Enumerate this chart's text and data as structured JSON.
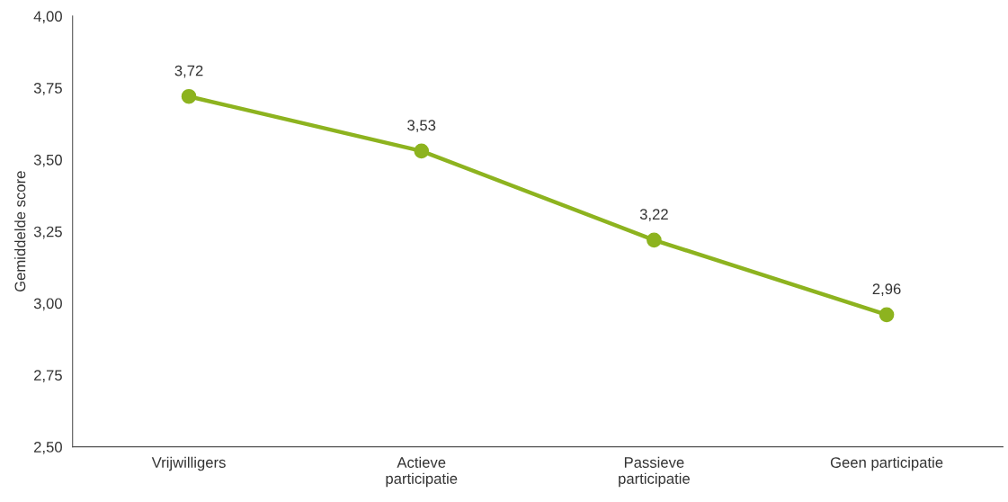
{
  "chart_data": {
    "type": "line",
    "ylabel": "Gemiddelde score",
    "categories": [
      "Vrijwilligers",
      "Actieve\nparticipatie",
      "Passieve\nparticipatie",
      "Geen participatie"
    ],
    "series": [
      {
        "color": "#8db31f",
        "values": [
          3.72,
          3.53,
          3.22,
          2.96
        ],
        "value_labels": [
          "3,72",
          "3,53",
          "3,22",
          "2,96"
        ]
      }
    ],
    "ylim": [
      2.5,
      4.0
    ],
    "yticks": [
      {
        "value": 2.5,
        "label": "2,50"
      },
      {
        "value": 2.75,
        "label": "2,75"
      },
      {
        "value": 3.0,
        "label": "3,00"
      },
      {
        "value": 3.25,
        "label": "3,25"
      },
      {
        "value": 3.5,
        "label": "3,50"
      },
      {
        "value": 3.75,
        "label": "3,75"
      },
      {
        "value": 4.0,
        "label": "4,00"
      }
    ],
    "grid": false,
    "legend": false,
    "marker": "circle",
    "line_style": "solid"
  }
}
